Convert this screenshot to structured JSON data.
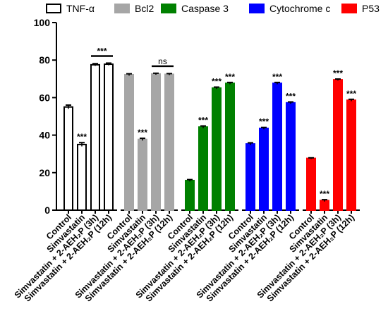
{
  "chart_data": {
    "type": "bar",
    "xlabel": "",
    "ylabel": "",
    "ylim": [
      0,
      100
    ],
    "yticks": [
      0,
      20,
      40,
      60,
      80,
      100
    ],
    "grid": false,
    "legend_position": "top",
    "groups": [
      {
        "name": "TNF-α",
        "color": "#ffffff",
        "stroke": "#000000",
        "categories": [
          "Control",
          "Simvastatin",
          "Simvastatin + 2-AEH₂P (3h)",
          "Simvastatin + 2-AEH₂P (12h)"
        ],
        "values": [
          55,
          35,
          77.5,
          77.8
        ],
        "errors": [
          1.0,
          1.0,
          0.6,
          0.6
        ],
        "annotations": [
          "",
          "***",
          "",
          ""
        ],
        "brackets": [
          {
            "from": 2,
            "to": 3,
            "label": "***"
          }
        ]
      },
      {
        "name": "Bcl2",
        "color": "#a6a6a6",
        "stroke": "#a6a6a6",
        "categories": [
          "Control",
          "Simvastatin",
          "Simvastatin + 2-AEH₂P (3h)",
          "Simvastatin + 2-AEH₂P (12h)"
        ],
        "values": [
          72.2,
          37.7,
          72.6,
          72.4
        ],
        "errors": [
          0.5,
          0.6,
          0.4,
          0.4
        ],
        "annotations": [
          "",
          "***",
          "",
          ""
        ],
        "brackets": [
          {
            "from": 2,
            "to": 3,
            "label": "ns"
          }
        ]
      },
      {
        "name": "Caspase 3",
        "color": "#008000",
        "stroke": "#008000",
        "categories": [
          "Control",
          "Simvastatin",
          "Simvastatin + 2-AEH₂P (3h)",
          "Simvastatin + 2-AEH₂P (12h)"
        ],
        "values": [
          15.8,
          44.3,
          65.1,
          67.6
        ],
        "errors": [
          0.5,
          0.6,
          0.5,
          0.5
        ],
        "annotations": [
          "",
          "***",
          "***",
          "***"
        ],
        "brackets": []
      },
      {
        "name": "Cytochrome c",
        "color": "#0000ff",
        "stroke": "#0000ff",
        "categories": [
          "Control",
          "Simvastatin",
          "Simvastatin + 2-AEH₂P (3h)",
          "Simvastatin + 2-AEH₂P (12h)"
        ],
        "values": [
          35.3,
          43.6,
          67.6,
          57.2
        ],
        "errors": [
          0.6,
          0.5,
          0.5,
          0.5
        ],
        "annotations": [
          "",
          "***",
          "***",
          "***"
        ],
        "brackets": []
      },
      {
        "name": "P53",
        "color": "#ff0000",
        "stroke": "#ff0000",
        "categories": [
          "Control",
          "Simvastatin",
          "Simvastatin + 2-AEH₂P (3h)",
          "Simvastatin + 2-AEH₂P (12h)"
        ],
        "values": [
          27.6,
          5.1,
          69.5,
          58.6
        ],
        "errors": [
          0.3,
          0.5,
          0.4,
          0.5
        ],
        "annotations": [
          "",
          "***",
          "***",
          "***"
        ],
        "brackets": []
      }
    ]
  }
}
